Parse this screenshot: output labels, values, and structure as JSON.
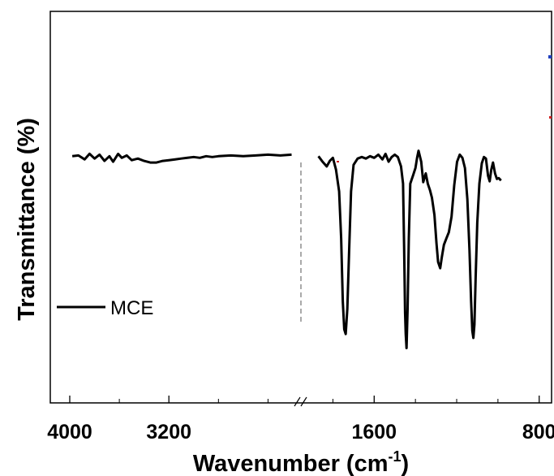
{
  "chart_data": {
    "type": "line",
    "title": "",
    "xlabel": "Wavenumber (cm",
    "xlabel_superscript": "-1",
    "xlabel_close": ")",
    "ylabel": "Transmittance (%)",
    "x_axis_reversed": true,
    "x_axis_broken": true,
    "x_segments": [
      {
        "xlim": [
          4000,
          2200
        ]
      },
      {
        "xlim": [
          1900,
          740
        ]
      }
    ],
    "x_tick_labels": [
      "4000",
      "3200",
      "1600",
      "800"
    ],
    "x_ticks_major": [
      4000,
      3200,
      1600,
      800
    ],
    "x_ticks_minor": [
      3600,
      2800,
      2400,
      1800,
      1400,
      1200,
      1000
    ],
    "ylim": [
      0,
      100
    ],
    "legend": {
      "position": "bottom-left",
      "entries": [
        "MCE"
      ]
    },
    "annotation": "dashed vertical line at axis break",
    "series": [
      {
        "name": "MCE",
        "color": "#000000",
        "points": [
          [
            3980,
            63.0
          ],
          [
            3930,
            63.2
          ],
          [
            3880,
            62.2
          ],
          [
            3840,
            63.6
          ],
          [
            3800,
            62.4
          ],
          [
            3760,
            63.4
          ],
          [
            3720,
            61.8
          ],
          [
            3680,
            63.0
          ],
          [
            3650,
            61.6
          ],
          [
            3610,
            63.6
          ],
          [
            3580,
            62.6
          ],
          [
            3540,
            63.2
          ],
          [
            3500,
            62.0
          ],
          [
            3450,
            62.4
          ],
          [
            3400,
            61.8
          ],
          [
            3350,
            61.4
          ],
          [
            3300,
            61.4
          ],
          [
            3250,
            61.8
          ],
          [
            3200,
            62.0
          ],
          [
            3150,
            62.2
          ],
          [
            3100,
            62.4
          ],
          [
            3050,
            62.6
          ],
          [
            3000,
            62.8
          ],
          [
            2950,
            62.6
          ],
          [
            2900,
            63.0
          ],
          [
            2850,
            62.8
          ],
          [
            2800,
            63.0
          ],
          [
            2700,
            63.2
          ],
          [
            2600,
            63.0
          ],
          [
            2500,
            63.2
          ],
          [
            2400,
            63.4
          ],
          [
            2300,
            63.2
          ],
          [
            2210,
            63.4
          ],
          [
            1870,
            63.0
          ],
          [
            1850,
            61.6
          ],
          [
            1830,
            60.4
          ],
          [
            1815,
            61.8
          ],
          [
            1800,
            62.6
          ],
          [
            1785,
            59.6
          ],
          [
            1770,
            54.0
          ],
          [
            1760,
            42.0
          ],
          [
            1752,
            26.0
          ],
          [
            1745,
            18.8
          ],
          [
            1738,
            17.6
          ],
          [
            1730,
            24.0
          ],
          [
            1722,
            38.0
          ],
          [
            1712,
            54.0
          ],
          [
            1700,
            60.8
          ],
          [
            1680,
            62.4
          ],
          [
            1660,
            62.8
          ],
          [
            1640,
            62.4
          ],
          [
            1620,
            63.0
          ],
          [
            1600,
            62.6
          ],
          [
            1580,
            63.4
          ],
          [
            1560,
            62.2
          ],
          [
            1545,
            63.6
          ],
          [
            1530,
            61.6
          ],
          [
            1515,
            62.8
          ],
          [
            1500,
            63.4
          ],
          [
            1485,
            62.8
          ],
          [
            1470,
            60.4
          ],
          [
            1460,
            56.0
          ],
          [
            1455,
            40.0
          ],
          [
            1450,
            23.0
          ],
          [
            1447,
            17.6
          ],
          [
            1443,
            14.0
          ],
          [
            1438,
            24.0
          ],
          [
            1432,
            42.0
          ],
          [
            1425,
            56.0
          ],
          [
            1412,
            58.0
          ],
          [
            1400,
            60.0
          ],
          [
            1392,
            62.6
          ],
          [
            1385,
            64.4
          ],
          [
            1372,
            61.6
          ],
          [
            1362,
            56.4
          ],
          [
            1350,
            58.6
          ],
          [
            1340,
            56.0
          ],
          [
            1330,
            54.4
          ],
          [
            1320,
            52.4
          ],
          [
            1308,
            48.0
          ],
          [
            1298,
            40.8
          ],
          [
            1290,
            36.0
          ],
          [
            1280,
            34.4
          ],
          [
            1272,
            37.2
          ],
          [
            1262,
            40.4
          ],
          [
            1250,
            42.0
          ],
          [
            1238,
            43.6
          ],
          [
            1225,
            47.6
          ],
          [
            1212,
            55.6
          ],
          [
            1198,
            61.6
          ],
          [
            1185,
            63.4
          ],
          [
            1172,
            62.6
          ],
          [
            1160,
            60.0
          ],
          [
            1148,
            52.0
          ],
          [
            1138,
            39.0
          ],
          [
            1130,
            26.0
          ],
          [
            1124,
            18.4
          ],
          [
            1119,
            16.6
          ],
          [
            1114,
            20.0
          ],
          [
            1108,
            32.0
          ],
          [
            1100,
            46.0
          ],
          [
            1090,
            56.0
          ],
          [
            1078,
            61.2
          ],
          [
            1068,
            62.8
          ],
          [
            1058,
            62.4
          ],
          [
            1048,
            58.0
          ],
          [
            1040,
            56.6
          ],
          [
            1032,
            59.6
          ],
          [
            1024,
            61.4
          ],
          [
            1014,
            58.6
          ],
          [
            1005,
            57.2
          ],
          [
            996,
            57.4
          ],
          [
            985,
            56.8
          ]
        ]
      }
    ]
  }
}
